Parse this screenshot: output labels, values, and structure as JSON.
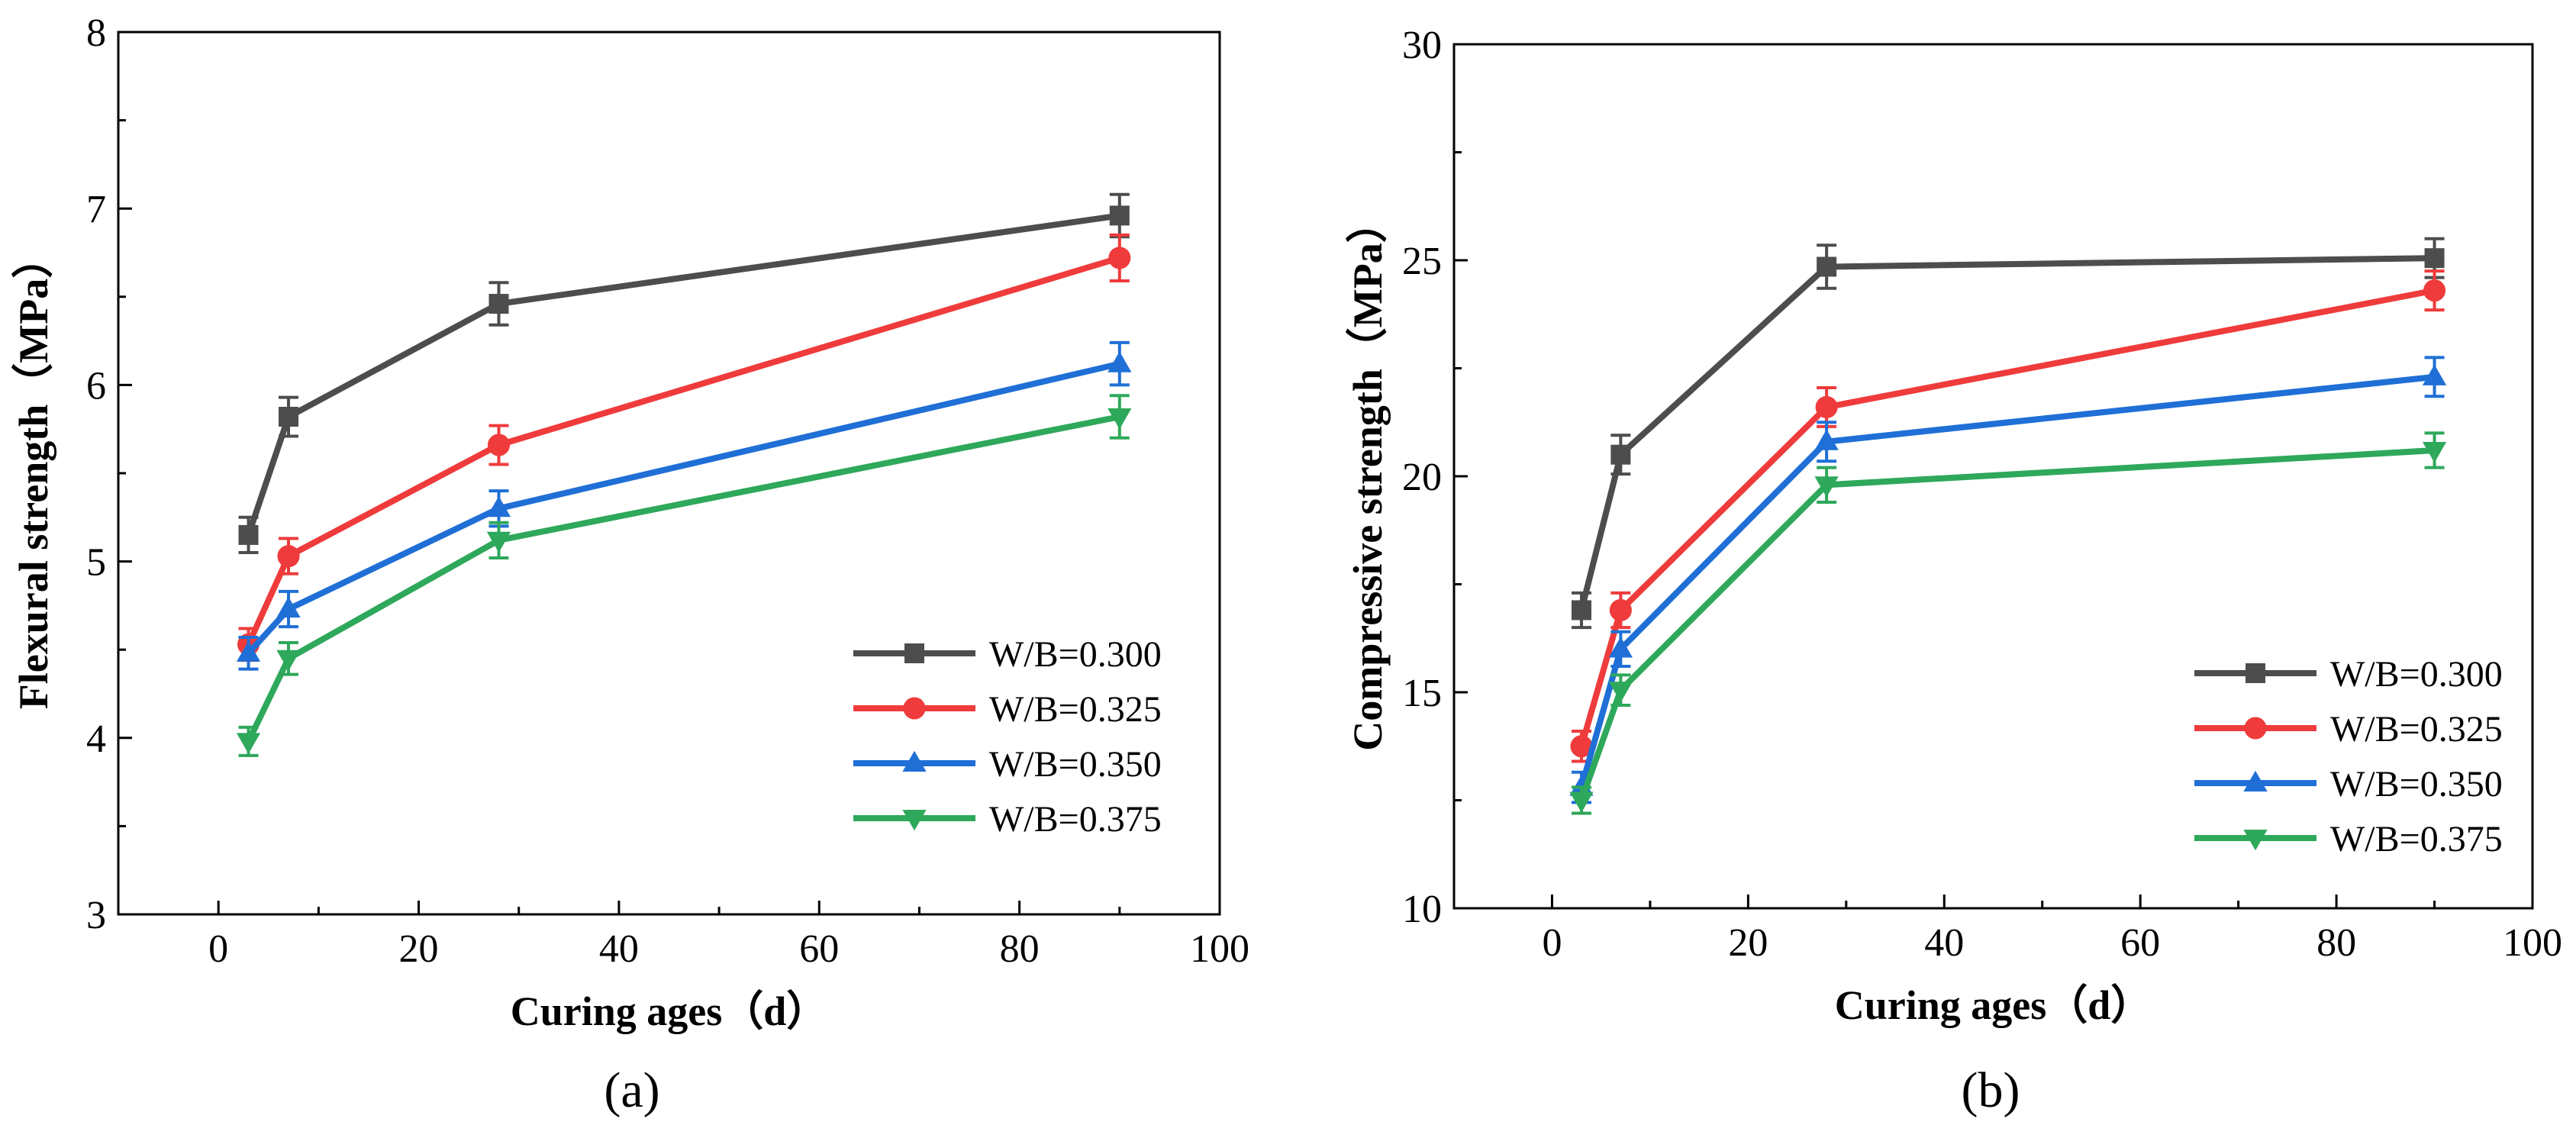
{
  "chart_data": [
    {
      "type": "line",
      "panel_label": "(a)",
      "xlabel": "Curing ages（d）",
      "ylabel": "Flexural strength（MPa）",
      "xlim": [
        -10,
        100
      ],
      "ylim": [
        3,
        8
      ],
      "xticks": [
        "0",
        "20",
        "40",
        "60",
        "80",
        "100"
      ],
      "yticks": [
        "3",
        "4",
        "5",
        "6",
        "7",
        "8"
      ],
      "x": [
        3,
        7,
        28,
        90
      ],
      "legend_position": "lower-right",
      "series": [
        {
          "name": "W/B=0.300",
          "color": "#4d4d4d",
          "marker": "square",
          "values": [
            5.15,
            5.82,
            6.46,
            6.96
          ],
          "errors": [
            0.1,
            0.11,
            0.12,
            0.12
          ]
        },
        {
          "name": "W/B=0.325",
          "color": "#ef3b3b",
          "marker": "circle",
          "values": [
            4.53,
            5.03,
            5.66,
            6.72
          ],
          "errors": [
            0.09,
            0.1,
            0.11,
            0.13
          ]
        },
        {
          "name": "W/B=0.350",
          "color": "#1f6fd6",
          "marker": "triangle-up",
          "values": [
            4.48,
            4.73,
            5.3,
            6.12
          ],
          "errors": [
            0.09,
            0.1,
            0.1,
            0.12
          ]
        },
        {
          "name": "W/B=0.375",
          "color": "#2ea85a",
          "marker": "triangle-down",
          "values": [
            3.98,
            4.45,
            5.12,
            5.82
          ],
          "errors": [
            0.08,
            0.09,
            0.1,
            0.12
          ]
        }
      ]
    },
    {
      "type": "line",
      "panel_label": "(b)",
      "xlabel": "Curing ages（d）",
      "ylabel": "Compressive strength（MPa）",
      "xlim": [
        -10,
        100
      ],
      "ylim": [
        10,
        30
      ],
      "xticks": [
        "0",
        "20",
        "40",
        "60",
        "80",
        "100"
      ],
      "yticks": [
        "10",
        "15",
        "20",
        "25",
        "30"
      ],
      "x": [
        3,
        7,
        28,
        90
      ],
      "legend_position": "lower-right",
      "series": [
        {
          "name": "W/B=0.300",
          "color": "#4d4d4d",
          "marker": "square",
          "values": [
            16.9,
            20.5,
            24.85,
            25.05
          ],
          "errors": [
            0.4,
            0.45,
            0.5,
            0.45
          ]
        },
        {
          "name": "W/B=0.325",
          "color": "#ef3b3b",
          "marker": "circle",
          "values": [
            13.75,
            16.9,
            21.6,
            24.3
          ],
          "errors": [
            0.35,
            0.4,
            0.45,
            0.45
          ]
        },
        {
          "name": "W/B=0.350",
          "color": "#1f6fd6",
          "marker": "triangle-up",
          "values": [
            12.8,
            16.0,
            20.8,
            22.3
          ],
          "errors": [
            0.35,
            0.4,
            0.45,
            0.45
          ]
        },
        {
          "name": "W/B=0.375",
          "color": "#2ea85a",
          "marker": "triangle-down",
          "values": [
            12.5,
            15.05,
            19.8,
            20.6
          ],
          "errors": [
            0.3,
            0.35,
            0.4,
            0.4
          ]
        }
      ]
    }
  ]
}
